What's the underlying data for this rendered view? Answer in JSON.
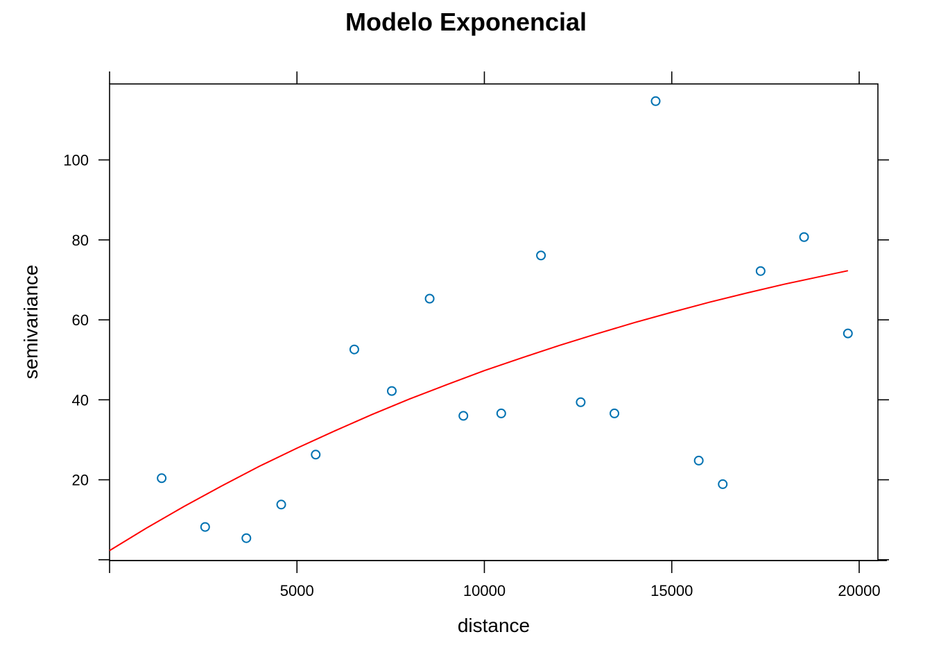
{
  "chart_data": {
    "type": "scatter",
    "title": "Modelo Exponencial",
    "xlabel": "distance",
    "ylabel": "semivariance",
    "xlim": [
      0,
      20500
    ],
    "ylim": [
      -0.2,
      119
    ],
    "x_ticks": [
      5000,
      10000,
      15000,
      20000
    ],
    "x_tick_labels": [
      "5000",
      "10000",
      "15000",
      "20000"
    ],
    "y_ticks": [
      20,
      40,
      60,
      80,
      100
    ],
    "y_tick_labels": [
      "20",
      "40",
      "60",
      "80",
      "100"
    ],
    "grid": false,
    "colors": {
      "points": "#0072b2",
      "model_line": "#ff0000",
      "axes": "#000000"
    },
    "points": {
      "x": [
        1390,
        2550,
        3650,
        4580,
        5500,
        6530,
        7530,
        8540,
        9440,
        10450,
        11510,
        12570,
        13470,
        14570,
        15720,
        16360,
        17370,
        18530,
        19700
      ],
      "y": [
        20.4,
        8.2,
        5.4,
        13.8,
        26.3,
        52.6,
        42.2,
        65.3,
        36.0,
        36.6,
        76.1,
        39.4,
        36.6,
        114.7,
        24.8,
        18.9,
        72.2,
        80.7,
        56.6
      ]
    },
    "model_line": {
      "x": [
        0,
        1000,
        2000,
        3000,
        4000,
        5000,
        6000,
        7000,
        8000,
        9000,
        10000,
        11000,
        12000,
        13000,
        14000,
        15000,
        16000,
        17000,
        18000,
        19000,
        19700
      ],
      "y": [
        2.3,
        8.0,
        13.4,
        18.5,
        23.4,
        27.9,
        32.2,
        36.3,
        40.2,
        43.8,
        47.3,
        50.5,
        53.6,
        56.5,
        59.3,
        61.9,
        64.4,
        66.7,
        68.9,
        70.9,
        72.3
      ]
    }
  }
}
